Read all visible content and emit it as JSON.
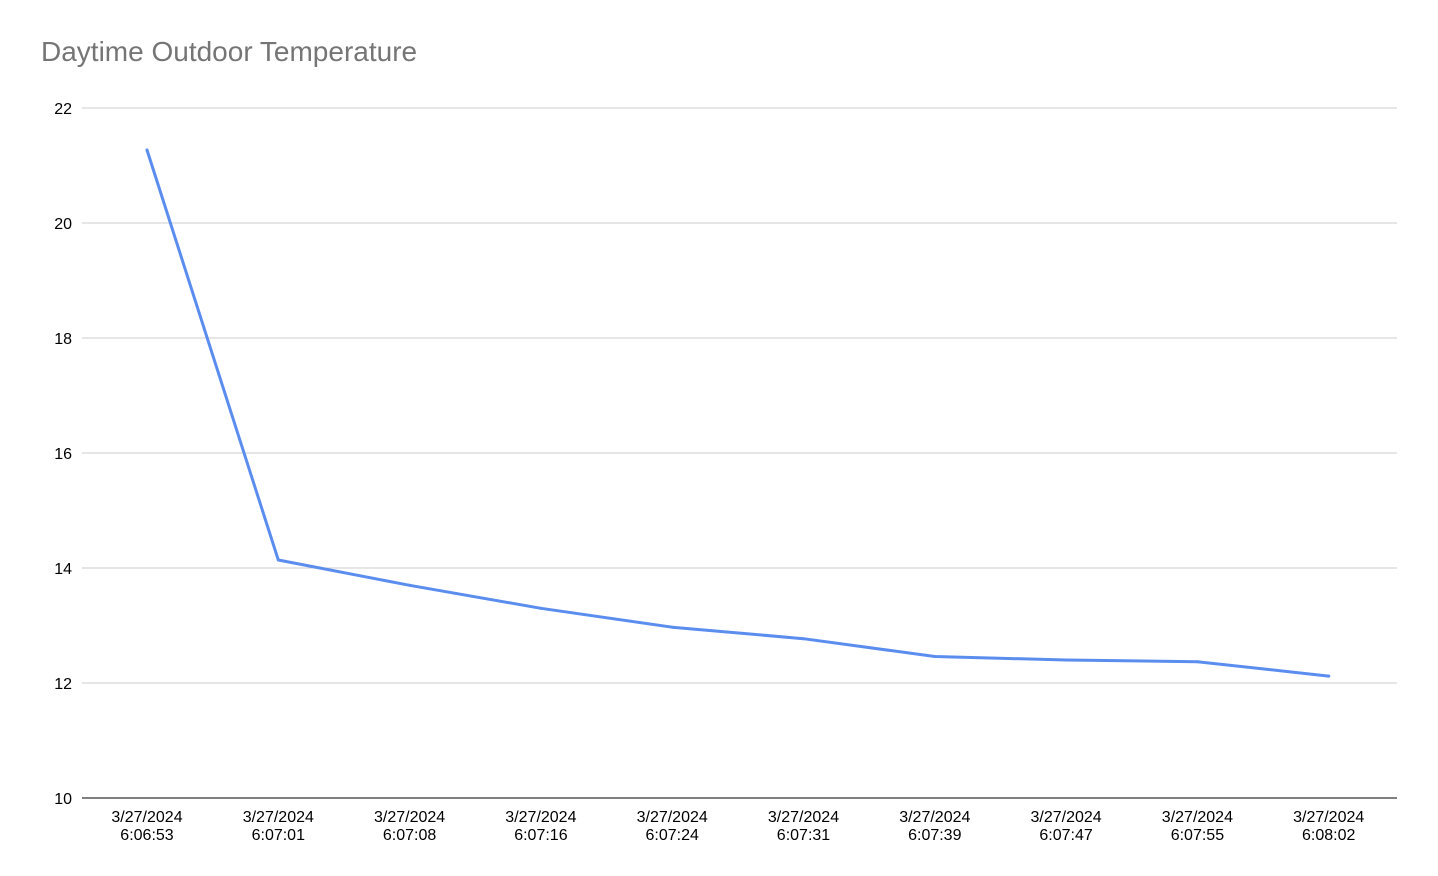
{
  "chart_data": {
    "type": "line",
    "title": "Daytime Outdoor Temperature",
    "xlabel": "",
    "ylabel": "",
    "categories": [
      [
        "3/27/2024",
        "6:06:53"
      ],
      [
        "3/27/2024",
        "6:07:01"
      ],
      [
        "3/27/2024",
        "6:07:08"
      ],
      [
        "3/27/2024",
        "6:07:16"
      ],
      [
        "3/27/2024",
        "6:07:24"
      ],
      [
        "3/27/2024",
        "6:07:31"
      ],
      [
        "3/27/2024",
        "6:07:39"
      ],
      [
        "3/27/2024",
        "6:07:47"
      ],
      [
        "3/27/2024",
        "6:07:55"
      ],
      [
        "3/27/2024",
        "6:08:02"
      ]
    ],
    "series": [
      {
        "values": [
          21.27,
          14.14,
          13.7,
          13.3,
          12.97,
          12.77,
          12.46,
          12.4,
          12.37,
          12.12
        ],
        "color": "#5B8DEF"
      }
    ],
    "ylim": [
      10,
      22
    ],
    "yticks": [
      10,
      12,
      14,
      16,
      18,
      20,
      22
    ],
    "grid": true,
    "legend": "none"
  }
}
